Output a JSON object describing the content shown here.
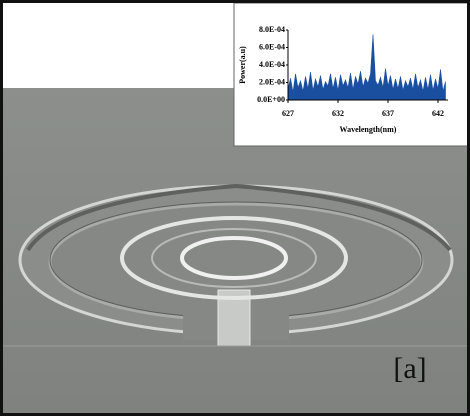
{
  "panel_label": "[a]",
  "chart_data": {
    "type": "area",
    "color": "#1a4fa0",
    "xlabel": "Wavelength(nm)",
    "ylabel": "Power(a.u)",
    "x": [
      627,
      627.25,
      627.5,
      627.75,
      628,
      628.25,
      628.5,
      628.75,
      629,
      629.25,
      629.5,
      629.75,
      630,
      630.25,
      630.5,
      630.75,
      631,
      631.25,
      631.5,
      631.75,
      632,
      632.25,
      632.5,
      632.75,
      633,
      633.25,
      633.5,
      633.75,
      634,
      634.25,
      634.5,
      634.75,
      635,
      635.25,
      635.5,
      635.75,
      636,
      636.25,
      636.5,
      636.75,
      637,
      637.25,
      637.5,
      637.75,
      638,
      638.25,
      638.5,
      638.75,
      639,
      639.25,
      639.5,
      639.75,
      640,
      640.25,
      640.5,
      640.75,
      641,
      641.25,
      641.5,
      641.75,
      642,
      642.25,
      642.5,
      642.75
    ],
    "values": [
      0.00012,
      0.00025,
      9e-05,
      0.0003,
      0.00014,
      0.00022,
      0.0001,
      0.00027,
      0.00013,
      0.00032,
      0.00011,
      0.00024,
      0.00015,
      0.00028,
      0.00012,
      0.00021,
      0.00016,
      0.0003,
      0.00013,
      0.00026,
      0.00011,
      0.00029,
      0.00016,
      0.00023,
      0.00014,
      0.00031,
      0.00012,
      0.00027,
      0.00018,
      0.00033,
      0.00015,
      0.00025,
      0.00019,
      0.0003,
      0.00075,
      0.00022,
      0.00017,
      0.00026,
      0.00014,
      0.00036,
      0.00016,
      0.00028,
      0.00012,
      0.00024,
      0.00013,
      0.00027,
      0.00011,
      0.00022,
      0.00015,
      0.00025,
      0.00012,
      0.0003,
      0.00014,
      0.00023,
      0.0001,
      0.00026,
      0.00012,
      0.00029,
      0.00011,
      0.00024,
      0.00013,
      0.00035,
      0.0001,
      0.00021
    ],
    "xlim": [
      627,
      643
    ],
    "xticks": [
      627,
      632,
      637,
      642
    ],
    "ylim": [
      0,
      0.0008
    ],
    "yticks": [
      {
        "value": 0,
        "label": "0.0E+00"
      },
      {
        "value": 0.0002,
        "label": "2.0E-04"
      },
      {
        "value": 0.0004,
        "label": "4.0E-04"
      },
      {
        "value": 0.0006,
        "label": "6.0E-04"
      },
      {
        "value": 0.0008,
        "label": "8.0E-04"
      }
    ]
  }
}
